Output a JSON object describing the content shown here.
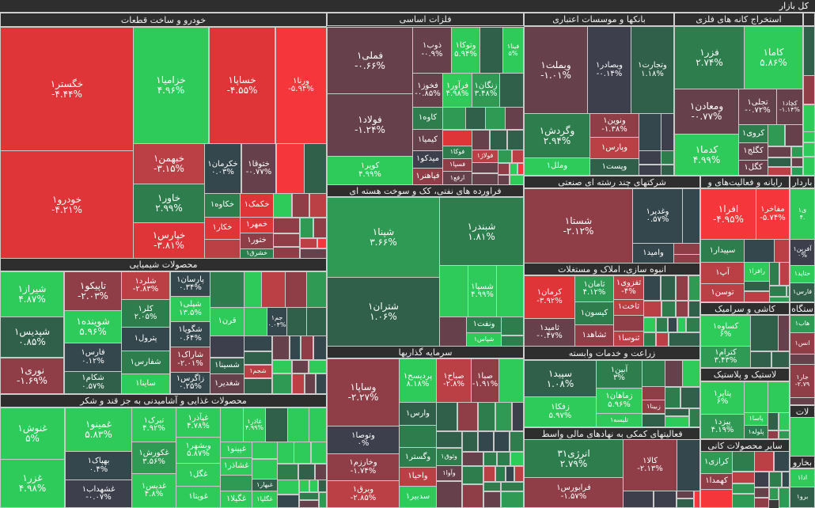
{
  "title": "کل بازار",
  "colors": {
    "strong_down": "#f5363a",
    "down": "#bb4045",
    "neutral": "#3d3f4d",
    "up": "#2e7d4d",
    "strong_up": "#2ecb5b"
  },
  "sectors": [
    {
      "title": "خودرو و ساخت قطعات",
      "stocks": [
        {
          "symbol": "خگستر۱",
          "change": "-۴.۴۴%"
        },
        {
          "symbol": "خودرو۱",
          "change": "-۴.۲۱%"
        },
        {
          "symbol": "خزامیا۱",
          "change": "۴.۹۶%"
        },
        {
          "symbol": "خساپا۱",
          "change": "-۴.۵۵%"
        },
        {
          "symbol": "ورنا۱",
          "change": "-۵.۹۴%"
        },
        {
          "symbol": "خبهمن۱",
          "change": "-۳.۱۵%"
        },
        {
          "symbol": "خاور۱",
          "change": "۲.۹۹%"
        },
        {
          "symbol": "خپارس۱",
          "change": "-۳.۸۱%"
        },
        {
          "symbol": "خکرمان۱",
          "change": "۰.۰۳%"
        },
        {
          "symbol": "ختوقا۱",
          "change": "-۰.۷۷%"
        },
        {
          "symbol": "خکاوه۱"
        },
        {
          "symbol": "خکمک۱"
        },
        {
          "symbol": "خکار۱"
        },
        {
          "symbol": "خمهر۱"
        },
        {
          "symbol": "ختور۱"
        },
        {
          "symbol": "خشرق۱"
        }
      ]
    },
    {
      "title": "محصولات شیمیایی",
      "stocks": [
        {
          "symbol": "شیراز۱",
          "change": "۴.۸۷%"
        },
        {
          "symbol": "شپدیس۱",
          "change": "۰.۸۵%"
        },
        {
          "symbol": "نوری۱",
          "change": "-۱.۶۹%"
        },
        {
          "symbol": "تاپیکو۱",
          "change": "-۲.۰۳%"
        },
        {
          "symbol": "شوینده۱",
          "change": "۵.۹۶%"
        },
        {
          "symbol": "فارس۱",
          "change": "۰.۱۲%"
        },
        {
          "symbol": "شکام۱",
          "change": "۰.۵۷%"
        },
        {
          "symbol": "شلرد۱",
          "change": "-۲.۸۳%"
        },
        {
          "symbol": "کلر۱",
          "change": "۲.۰۵%"
        },
        {
          "symbol": "پترول۱"
        },
        {
          "symbol": "شفارس۱"
        },
        {
          "symbol": "ساینا۱"
        },
        {
          "symbol": "پارسان۱",
          "change": "۰.۳۴%"
        },
        {
          "symbol": "شپلی۱",
          "change": "۱۳.۵%"
        },
        {
          "symbol": "شگویا۱",
          "change": "۰.۶۴%"
        },
        {
          "symbol": "شاراک۱",
          "change": "-۲.۰۱%"
        },
        {
          "symbol": "زاگرس۱",
          "change": "۰.۲۵%"
        },
        {
          "symbol": "قرن۱"
        },
        {
          "symbol": "جم۱",
          "change": "۰.۰۴%"
        },
        {
          "symbol": "شسینا۱"
        },
        {
          "symbol": "شجم۱"
        },
        {
          "symbol": "شغدیر۱"
        }
      ]
    },
    {
      "title": "محصولات غذایی و آشامیدنی به جز قند و شکر",
      "stocks": [
        {
          "symbol": "غنوش۱",
          "change": "۵%"
        },
        {
          "symbol": "غزر۱",
          "change": "۴.۹۸%"
        },
        {
          "symbol": "غمینو۱",
          "change": "۵.۸۳%"
        },
        {
          "symbol": "بهپاک۱",
          "change": "۰.۴%"
        },
        {
          "symbol": "غشهداب۱",
          "change": "-۰.۰۷%"
        },
        {
          "symbol": "تبرک۱",
          "change": "۴.۹۲%"
        },
        {
          "symbol": "غکورش۱",
          "change": "۳.۵۶%"
        },
        {
          "symbol": "غدیس۱",
          "change": "۴.۸%"
        },
        {
          "symbol": "غپآذر۱",
          "change": "۴.۷۸%"
        },
        {
          "symbol": "وبشهر۱",
          "change": "۵.۸۷%"
        },
        {
          "symbol": "غگل۱"
        },
        {
          "symbol": "غویتا۱"
        },
        {
          "symbol": "غاذر۱",
          "change": "۴.۹۹%"
        },
        {
          "symbol": "غپینو۱"
        },
        {
          "symbol": "غشاذر۱"
        },
        {
          "symbol": "غگیلا۱"
        },
        {
          "symbol": "غبهار۱"
        },
        {
          "symbol": "غگلپا۱"
        }
      ]
    },
    {
      "title": "فلزات اساسی",
      "stocks": [
        {
          "symbol": "فملی۱",
          "change": "-۰.۶۶%"
        },
        {
          "symbol": "فولاد۱",
          "change": "-۱.۲۴%"
        },
        {
          "symbol": "کویر۱",
          "change": "۴.۹۹%"
        },
        {
          "symbol": "ذوب۱",
          "change": "-۰.۹%"
        },
        {
          "symbol": "وتوکا۱",
          "change": "۵.۹۴%"
        },
        {
          "symbol": "فینا۱",
          "change": "۵%"
        },
        {
          "symbol": "فخوز۱",
          "change": "-۰.۸۵%"
        },
        {
          "symbol": "فرآور۱",
          "change": "۴.۹۸%"
        },
        {
          "symbol": "زنگان۱",
          "change": "۳.۴۸%"
        },
        {
          "symbol": "کاوه۱"
        },
        {
          "symbol": "کیمیا۱"
        },
        {
          "symbol": "میدکو۱"
        },
        {
          "symbol": "فپاهنر۱"
        },
        {
          "symbol": "فوکا۱"
        },
        {
          "symbol": "فسپا۱"
        },
        {
          "symbol": "ارفع۱"
        },
        {
          "symbol": "فولاژ۱"
        }
      ]
    },
    {
      "title": "فراورده های نفتی، کک و سوخت هسته ای",
      "stocks": [
        {
          "symbol": "شپنا۱",
          "change": "۳.۶۶%"
        },
        {
          "symbol": "شتران۱",
          "change": "۱.۰۶%"
        },
        {
          "symbol": "شبندر۱",
          "change": "۱.۸۱%"
        },
        {
          "symbol": "شسپا۱",
          "change": "۴.۹۹%"
        },
        {
          "symbol": "ونفت۱"
        },
        {
          "symbol": "شپاس۱"
        }
      ]
    },
    {
      "title": "سرمایه گذاریها",
      "stocks": [
        {
          "symbol": "وساپا۱",
          "change": "-۲.۲۷%"
        },
        {
          "symbol": "وتوصا۱",
          "change": "۰%"
        },
        {
          "symbol": "وخارزم۱",
          "change": "-۱.۷۴%"
        },
        {
          "symbol": "وبرق۱",
          "change": "-۲.۸۵%"
        },
        {
          "symbol": "پردیسح۱",
          "change": "۸.۱۸%"
        },
        {
          "symbol": "صباح۱",
          "change": "-۲.۸%"
        },
        {
          "symbol": "صبا۱",
          "change": "-۱.۹۱%"
        },
        {
          "symbol": "وارس۱"
        },
        {
          "symbol": "وگستر۱"
        },
        {
          "symbol": "واحیا۱"
        },
        {
          "symbol": "سدبیر۱"
        },
        {
          "symbol": "وثوق۱"
        },
        {
          "symbol": "وآوا۱"
        }
      ]
    },
    {
      "title": "بانکها و موسسات اعتباری",
      "stocks": [
        {
          "symbol": "وبملت۱",
          "change": "-۱.۰۱%"
        },
        {
          "symbol": "وبصادر۱",
          "change": "-۰.۱۴%"
        },
        {
          "symbol": "وتجارت۱",
          "change": "۱.۱۸%"
        },
        {
          "symbol": "وگردش۱",
          "change": "۲.۹۴%"
        },
        {
          "symbol": "ونوین۱",
          "change": "-۱.۳۸%"
        },
        {
          "symbol": "وپارس۱"
        },
        {
          "symbol": "وملل۱"
        },
        {
          "symbol": "وپست۱"
        }
      ]
    },
    {
      "title": "استخراج کانه های فلزی",
      "stocks": [
        {
          "symbol": "فزر۱",
          "change": "۲.۷۴%"
        },
        {
          "symbol": "کاما۱",
          "change": "۵.۸۶%"
        },
        {
          "symbol": "ومعادن۱",
          "change": "-۰.۷۷%"
        },
        {
          "symbol": "کدما۱",
          "change": "۴.۹۹%"
        },
        {
          "symbol": "تجلی۱",
          "change": "-۰.۷۲%"
        },
        {
          "symbol": "کچاد۱",
          "change": "-۱.۱۴%"
        },
        {
          "symbol": "کروی۱"
        },
        {
          "symbol": "کگلج۱"
        },
        {
          "symbol": "کگل۱"
        }
      ]
    },
    {
      "title": "شرکتهای چند رشته ای صنعتی",
      "stocks": [
        {
          "symbol": "شستا۱",
          "change": "-۲.۱۲%"
        },
        {
          "symbol": "وغدیر۱",
          "change": "۰.۵۷%"
        },
        {
          "symbol": "وامید۱"
        }
      ]
    },
    {
      "title": "انبوه سازی، املاک و مستغلات",
      "stocks": [
        {
          "symbol": "کرمان۱",
          "change": "-۳.۹۲%"
        },
        {
          "symbol": "ثامید۱",
          "change": "-۰.۴۷%"
        },
        {
          "symbol": "ثامان۱",
          "change": "۴.۱۲%"
        },
        {
          "symbol": "کیسون۱"
        },
        {
          "symbol": "ثشاهد۱"
        },
        {
          "symbol": "ثفزوی۱",
          "change": "-۴%"
        },
        {
          "symbol": "ثاخت۱"
        },
        {
          "symbol": "ثنوسا۱"
        }
      ]
    },
    {
      "title": "زراعت و خدمات وابسته",
      "stocks": [
        {
          "symbol": "سپید۱",
          "change": "۱.۰۸%"
        },
        {
          "symbol": "زفکا۱",
          "change": "۵.۹۷%"
        },
        {
          "symbol": "آبین۱",
          "change": "۳%"
        },
        {
          "symbol": "زماهان۱",
          "change": "۵.۹۶%"
        },
        {
          "symbol": "تلیسه۱"
        },
        {
          "symbol": "زبینا۱"
        }
      ]
    },
    {
      "title": "فعالیتهای کمکی به نهادهای مالی واسط",
      "stocks": [
        {
          "symbol": "انرژی۳۱",
          "change": "۲.۷۹%"
        },
        {
          "symbol": "فرابورس۱",
          "change": "-۱.۵۷%"
        },
        {
          "symbol": "کالا۱",
          "change": "-۲.۱۳%"
        }
      ]
    },
    {
      "title": "رایانه و فعالیت‌های و",
      "stocks": [
        {
          "symbol": "افرا۱",
          "change": "-۴.۹۵%"
        },
        {
          "symbol": "مفاخر۱",
          "change": "-۵.۷۴%"
        },
        {
          "symbol": "سپیدار۱"
        },
        {
          "symbol": "آپ۱"
        },
        {
          "symbol": "رافزا۱"
        },
        {
          "symbol": "توسن۱"
        }
      ]
    },
    {
      "title": "کاشی و سرامیک",
      "stocks": [
        {
          "symbol": "کساوه۱",
          "change": "۶%"
        },
        {
          "symbol": "کترام۱",
          "change": "۳.۴۳%"
        }
      ]
    },
    {
      "title": "لاستیک و پلاستیک",
      "stocks": [
        {
          "symbol": "پتایر۱",
          "change": "۶%"
        },
        {
          "symbol": "پیزد۱",
          "change": "۴.۱۹%"
        },
        {
          "symbol": "پاسا۱"
        },
        {
          "symbol": "پلوله۱"
        }
      ]
    },
    {
      "title": "سایر محصولات کانی",
      "stocks": [
        {
          "symbol": "کرازی۱"
        },
        {
          "symbol": "کهمدا۱"
        }
      ]
    },
    {
      "title": "باردار",
      "stocks": [
        {
          "symbol": "ی۱",
          "change": "۴."
        },
        {
          "symbol": "آفرین۱",
          "change": "۰%"
        },
        {
          "symbol": "حتاید۱"
        },
        {
          "symbol": "فارس۱"
        }
      ]
    },
    {
      "title": "ستگاه",
      "stocks": [
        {
          "symbol": "هاب۱"
        },
        {
          "symbol": "انس۱"
        },
        {
          "symbol": "جار۱",
          "change": "-۲.۷۹"
        }
      ]
    },
    {
      "title": "لات",
      "stocks": []
    },
    {
      "title": "بخارو",
      "stocks": [
        {
          "symbol": "ادا۱"
        },
        {
          "symbol": "برو۱"
        }
      ]
    }
  ]
}
